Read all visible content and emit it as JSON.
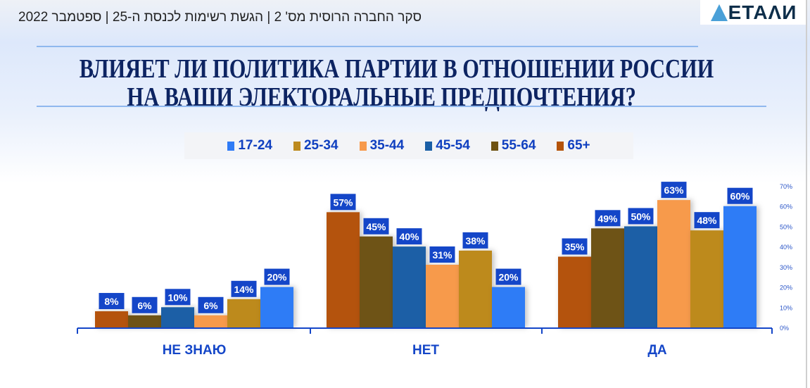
{
  "header": {
    "text": "סקר החברה הרוסית מס' 2 | הגשת רשימות לכנסת ה-25 | ספטמבר 2022",
    "logo": "ΔΕΤΑΛИ"
  },
  "chart_data": {
    "type": "bar",
    "title": [
      "ВЛИЯЕТ ЛИ ПОЛИТИКА ПАРТИИ В ОТНОШЕНИИ РОССИИ",
      "НА ВАШИ ЭЛЕКТОРАЛЬНЫЕ ПРЕДПОЧТЕНИЯ?"
    ],
    "categories": [
      "НЕ ЗНАЮ",
      "НЕТ",
      "ДА"
    ],
    "legend_placement": "top",
    "ylim": [
      0,
      70
    ],
    "yticks": [
      "0%",
      "10%",
      "20%",
      "30%",
      "40%",
      "50%",
      "60%",
      "70%"
    ],
    "grid": false,
    "series": [
      {
        "name": "17-24",
        "color": "#2f7bf6",
        "values": [
          20,
          20,
          60
        ]
      },
      {
        "name": "25-34",
        "color": "#bd8a1e",
        "values": [
          14,
          38,
          48
        ]
      },
      {
        "name": "35-44",
        "color": "#f79a4b",
        "values": [
          6,
          31,
          63
        ]
      },
      {
        "name": "45-54",
        "color": "#1a5fa6",
        "values": [
          10,
          40,
          50
        ]
      },
      {
        "name": "55-64",
        "color": "#6e5212",
        "values": [
          6,
          45,
          49
        ]
      },
      {
        "name": "65+",
        "color": "#b4530a",
        "values": [
          8,
          57,
          35
        ]
      }
    ],
    "bar_order": [
      "65+",
      "55-64",
      "45-54",
      "35-44",
      "25-34",
      "17-24"
    ],
    "label_color": "#1446c8",
    "axis_color": "#1446c8"
  }
}
